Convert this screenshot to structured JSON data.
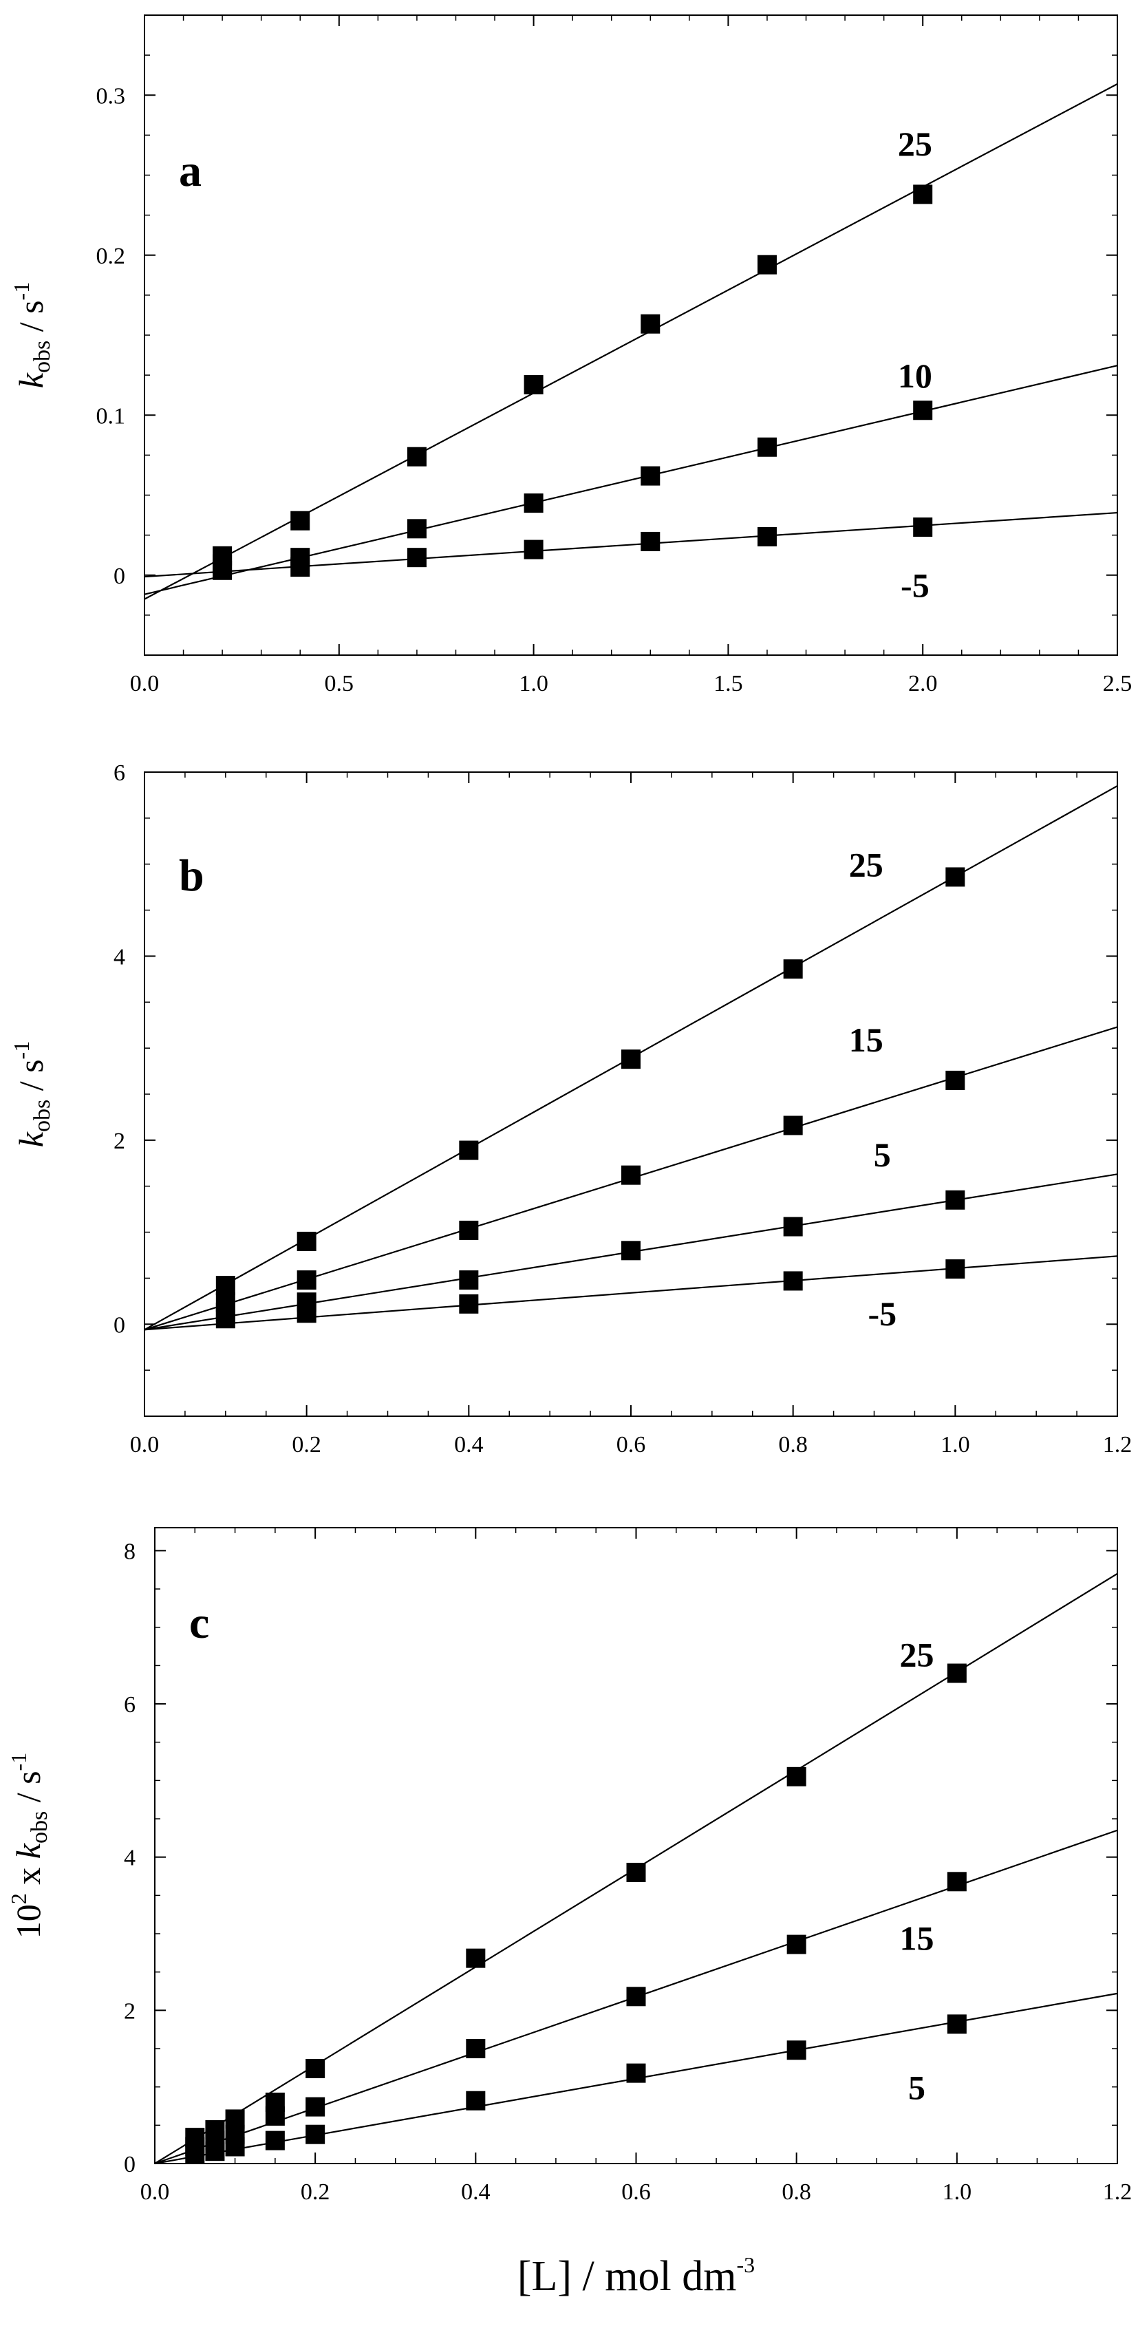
{
  "chart_data": [
    {
      "type": "scatter",
      "panel": "a",
      "ylabel": "k_obs / s^-1",
      "ylabel_parts": {
        "k": "k",
        "sub": "obs",
        "unit": " / s",
        "sup": "-1"
      },
      "xlim": [
        0,
        2.5
      ],
      "ylim": [
        -0.05,
        0.35
      ],
      "xticks": [
        0.0,
        0.5,
        1.0,
        1.5,
        2.0,
        2.5
      ],
      "xtick_labels": [
        "0.0",
        "0.5",
        "1.0",
        "1.5",
        "2.0",
        "2.5"
      ],
      "yticks": [
        0,
        0.1,
        0.2,
        0.3
      ],
      "ytick_labels": [
        "0",
        "0.1",
        "0.2",
        "0.3"
      ],
      "series": [
        {
          "name": "25",
          "x": [
            0.2,
            0.4,
            0.7,
            1.0,
            1.3,
            1.6,
            2.0
          ],
          "y": [
            0.012,
            0.034,
            0.074,
            0.119,
            0.157,
            0.194,
            0.238
          ],
          "fit": {
            "x": [
              0.0,
              2.5
            ],
            "y": [
              -0.015,
              0.307
            ]
          },
          "label_at": [
            1.98,
            0.27
          ]
        },
        {
          "name": "10",
          "x": [
            0.2,
            0.4,
            0.7,
            1.0,
            1.3,
            1.6,
            2.0
          ],
          "y": [
            0.007,
            0.011,
            0.029,
            0.045,
            0.062,
            0.08,
            0.103
          ],
          "fit": {
            "x": [
              0.0,
              2.5
            ],
            "y": [
              -0.012,
              0.131
            ]
          },
          "label_at": [
            1.98,
            0.125
          ]
        },
        {
          "name": "-5",
          "x": [
            0.2,
            0.4,
            0.7,
            1.0,
            1.3,
            1.6,
            2.0
          ],
          "y": [
            0.003,
            0.005,
            0.011,
            0.016,
            0.021,
            0.024,
            0.03
          ],
          "fit": {
            "x": [
              0.0,
              2.5
            ],
            "y": [
              -0.001,
              0.039
            ]
          },
          "label_at": [
            1.98,
            -0.006
          ]
        }
      ]
    },
    {
      "type": "scatter",
      "panel": "b",
      "ylabel": "k_obs / s^-1",
      "ylabel_parts": {
        "k": "k",
        "sub": "obs",
        "unit": " / s",
        "sup": "-1"
      },
      "xlim": [
        0,
        1.2
      ],
      "ylim": [
        -1,
        6
      ],
      "xticks": [
        0.0,
        0.2,
        0.4,
        0.6,
        0.8,
        1.0,
        1.2
      ],
      "xtick_labels": [
        "0.0",
        "0.2",
        "0.4",
        "0.6",
        "0.8",
        "1.0",
        "1.2"
      ],
      "yticks": [
        0,
        2,
        4,
        6
      ],
      "ytick_labels": [
        "0",
        "2",
        "4",
        "6"
      ],
      "series": [
        {
          "name": "25",
          "x": [
            0.1,
            0.2,
            0.4,
            0.6,
            0.8,
            1.0
          ],
          "y": [
            0.42,
            0.9,
            1.89,
            2.88,
            3.86,
            4.86
          ],
          "fit": {
            "x": [
              0.0,
              1.2
            ],
            "y": [
              -0.06,
              5.85
            ]
          },
          "label_at": [
            0.89,
            5.0
          ]
        },
        {
          "name": "15",
          "x": [
            0.1,
            0.2,
            0.4,
            0.6,
            0.8,
            1.0
          ],
          "y": [
            0.24,
            0.48,
            1.02,
            1.62,
            2.16,
            2.65
          ],
          "fit": {
            "x": [
              0.0,
              1.2
            ],
            "y": [
              -0.06,
              3.23
            ]
          },
          "label_at": [
            0.89,
            3.1
          ]
        },
        {
          "name": "5",
          "x": [
            0.1,
            0.2,
            0.4,
            0.6,
            0.8,
            1.0
          ],
          "y": [
            0.13,
            0.24,
            0.48,
            0.8,
            1.06,
            1.35
          ],
          "fit": {
            "x": [
              0.0,
              1.2
            ],
            "y": [
              -0.06,
              1.63
            ]
          },
          "label_at": [
            0.91,
            1.85
          ]
        },
        {
          "name": "-5",
          "x": [
            0.1,
            0.2,
            0.4,
            0.8,
            1.0
          ],
          "y": [
            0.06,
            0.12,
            0.22,
            0.47,
            0.6
          ],
          "fit": {
            "x": [
              0.0,
              1.2
            ],
            "y": [
              -0.06,
              0.74
            ]
          },
          "label_at": [
            0.91,
            0.12
          ]
        }
      ]
    },
    {
      "type": "scatter",
      "panel": "c",
      "ylabel": "10^2 x k_obs / s^-1",
      "ylabel_parts": {
        "pre": "10",
        "pre_sup": "2",
        "x": " x ",
        "k": "k",
        "sub": "obs",
        "unit": " / s",
        "sup": "-1"
      },
      "xlim": [
        0,
        1.2
      ],
      "ylim": [
        0,
        8.3
      ],
      "xticks": [
        0.0,
        0.2,
        0.4,
        0.6,
        0.8,
        1.0,
        1.2
      ],
      "xtick_labels": [
        "0.0",
        "0.2",
        "0.4",
        "0.6",
        "0.8",
        "1.0",
        "1.2"
      ],
      "yticks": [
        0,
        2,
        4,
        6,
        8
      ],
      "ytick_labels": [
        "0",
        "2",
        "4",
        "6",
        "8"
      ],
      "xlabel": "[L] / mol dm-3",
      "xlabel_parts": {
        "main": "[L] / mol dm",
        "sup": "-3"
      },
      "series": [
        {
          "name": "25",
          "x": [
            0.05,
            0.075,
            0.1,
            0.15,
            0.2,
            0.4,
            0.6,
            0.8,
            1.0
          ],
          "y": [
            0.34,
            0.44,
            0.58,
            0.8,
            1.24,
            2.68,
            3.8,
            5.05,
            6.4
          ],
          "fit": {
            "x": [
              0.0,
              1.2
            ],
            "y": [
              0.0,
              7.7
            ]
          },
          "label_at": [
            0.95,
            6.65
          ]
        },
        {
          "name": "15",
          "x": [
            0.05,
            0.075,
            0.1,
            0.15,
            0.2,
            0.4,
            0.6,
            0.8,
            1.0
          ],
          "y": [
            0.22,
            0.3,
            0.38,
            0.62,
            0.74,
            1.5,
            2.18,
            2.86,
            3.68
          ],
          "fit": {
            "x": [
              0.0,
              1.2
            ],
            "y": [
              0.0,
              4.35
            ]
          },
          "label_at": [
            0.95,
            2.95
          ]
        },
        {
          "name": "5",
          "x": [
            0.05,
            0.075,
            0.1,
            0.15,
            0.2,
            0.4,
            0.6,
            0.8,
            1.0
          ],
          "y": [
            0.12,
            0.16,
            0.22,
            0.3,
            0.38,
            0.82,
            1.18,
            1.48,
            1.82
          ],
          "fit": {
            "x": [
              0.0,
              1.2
            ],
            "y": [
              0.0,
              2.22
            ]
          },
          "label_at": [
            0.95,
            1.0
          ]
        }
      ]
    }
  ]
}
